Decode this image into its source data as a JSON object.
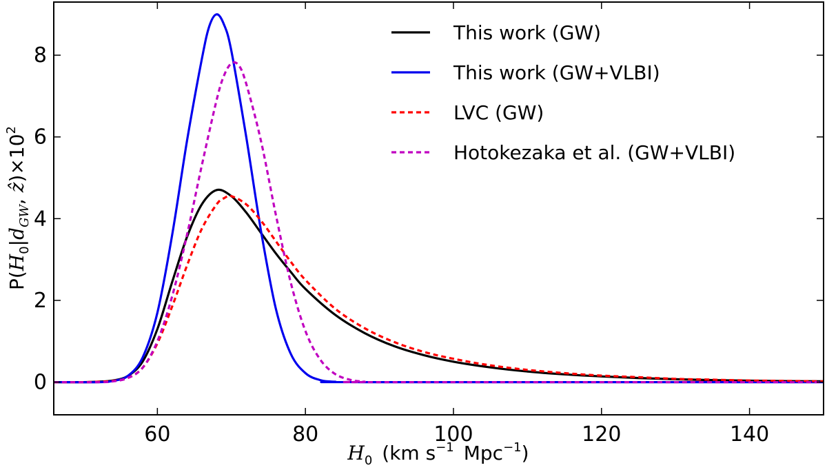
{
  "chart_data": {
    "type": "line",
    "xlabel_main": "H",
    "xlabel_sub": "0",
    "xlabel_units": "(km s",
    "xlabel_exp": "−1",
    "xlabel_mpc": "Mpc",
    "xlabel_mpc_exp": "−1",
    "xlabel_close": ")",
    "ylabel_prefix": "P(",
    "ylabel_h": "H",
    "ylabel_h_sub": "0",
    "ylabel_bar": "|",
    "ylabel_d": "d",
    "ylabel_d_sub": "GW",
    "ylabel_comma": ", ",
    "ylabel_z": "ẑ",
    "ylabel_close": ")",
    "ylabel_times": "×10",
    "ylabel_exp": "2",
    "xlim": [
      46,
      150
    ],
    "ylim": [
      -0.8,
      9.3
    ],
    "xticks": [
      60,
      80,
      100,
      120,
      140
    ],
    "yticks": [
      0,
      2,
      4,
      6,
      8
    ],
    "legend_position": "top-right",
    "series": [
      {
        "name": "This work (GW)",
        "color": "#000000",
        "style": "solid",
        "points": [
          [
            46,
            0
          ],
          [
            50,
            0.0
          ],
          [
            52,
            0.01
          ],
          [
            54,
            0.04
          ],
          [
            56,
            0.15
          ],
          [
            58,
            0.5
          ],
          [
            60,
            1.3
          ],
          [
            62,
            2.45
          ],
          [
            64,
            3.55
          ],
          [
            66,
            4.35
          ],
          [
            68,
            4.7
          ],
          [
            70,
            4.55
          ],
          [
            72,
            4.15
          ],
          [
            74,
            3.65
          ],
          [
            76,
            3.15
          ],
          [
            78,
            2.7
          ],
          [
            80,
            2.28
          ],
          [
            84,
            1.65
          ],
          [
            88,
            1.2
          ],
          [
            92,
            0.88
          ],
          [
            96,
            0.66
          ],
          [
            100,
            0.5
          ],
          [
            105,
            0.36
          ],
          [
            110,
            0.26
          ],
          [
            115,
            0.19
          ],
          [
            120,
            0.14
          ],
          [
            125,
            0.1
          ],
          [
            130,
            0.07
          ],
          [
            135,
            0.05
          ],
          [
            140,
            0.035
          ],
          [
            145,
            0.025
          ],
          [
            150,
            0.02
          ]
        ]
      },
      {
        "name": "This work (GW+VLBI)",
        "color": "#0000ee",
        "style": "solid",
        "points": [
          [
            46,
            0
          ],
          [
            52,
            0.0
          ],
          [
            54,
            0.03
          ],
          [
            56,
            0.15
          ],
          [
            58,
            0.6
          ],
          [
            60,
            1.7
          ],
          [
            62,
            3.6
          ],
          [
            64,
            5.9
          ],
          [
            66,
            7.9
          ],
          [
            67,
            8.7
          ],
          [
            68,
            9.0
          ],
          [
            69,
            8.75
          ],
          [
            70,
            8.1
          ],
          [
            72,
            6.0
          ],
          [
            74,
            3.7
          ],
          [
            76,
            1.8
          ],
          [
            78,
            0.7
          ],
          [
            80,
            0.22
          ],
          [
            82,
            0.05
          ],
          [
            84,
            0.01
          ],
          [
            88,
            0
          ],
          [
            150,
            0
          ]
        ]
      },
      {
        "name": "LVC (GW)",
        "color": "#ff0000",
        "style": "dashed",
        "points": [
          [
            46,
            0
          ],
          [
            50,
            0.0
          ],
          [
            52,
            0.01
          ],
          [
            54,
            0.03
          ],
          [
            56,
            0.1
          ],
          [
            58,
            0.35
          ],
          [
            60,
            0.95
          ],
          [
            62,
            1.85
          ],
          [
            64,
            2.85
          ],
          [
            66,
            3.75
          ],
          [
            68,
            4.35
          ],
          [
            69,
            4.5
          ],
          [
            70,
            4.55
          ],
          [
            72,
            4.35
          ],
          [
            74,
            3.95
          ],
          [
            76,
            3.45
          ],
          [
            78,
            2.95
          ],
          [
            80,
            2.5
          ],
          [
            84,
            1.8
          ],
          [
            88,
            1.32
          ],
          [
            92,
            0.98
          ],
          [
            96,
            0.74
          ],
          [
            100,
            0.57
          ],
          [
            105,
            0.41
          ],
          [
            110,
            0.3
          ],
          [
            115,
            0.22
          ],
          [
            120,
            0.16
          ],
          [
            125,
            0.12
          ],
          [
            130,
            0.08
          ],
          [
            135,
            0.06
          ],
          [
            140,
            0.04
          ],
          [
            145,
            0.03
          ],
          [
            150,
            0.02
          ]
        ]
      },
      {
        "name": "Hotokezaka et al. (GW+VLBI)",
        "color": "#c000c0",
        "style": "dashed",
        "points": [
          [
            46,
            0
          ],
          [
            52,
            0.0
          ],
          [
            54,
            0.02
          ],
          [
            56,
            0.1
          ],
          [
            58,
            0.35
          ],
          [
            60,
            1.0
          ],
          [
            62,
            2.1
          ],
          [
            64,
            3.6
          ],
          [
            66,
            5.3
          ],
          [
            68,
            6.9
          ],
          [
            69,
            7.5
          ],
          [
            70,
            7.8
          ],
          [
            71,
            7.75
          ],
          [
            72,
            7.3
          ],
          [
            74,
            5.9
          ],
          [
            76,
            4.1
          ],
          [
            78,
            2.45
          ],
          [
            80,
            1.25
          ],
          [
            82,
            0.55
          ],
          [
            84,
            0.2
          ],
          [
            86,
            0.06
          ],
          [
            88,
            0.01
          ],
          [
            90,
            0
          ],
          [
            150,
            0
          ]
        ]
      }
    ]
  }
}
